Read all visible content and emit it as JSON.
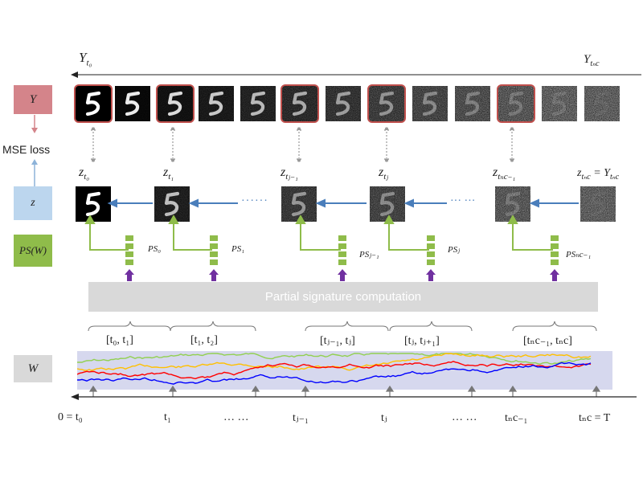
{
  "header": {
    "y_start": "Y",
    "y_start_sub": "t₀",
    "y_end": "Y",
    "y_end_sub": "tₙc"
  },
  "legend": {
    "y": "Y",
    "mse": "MSE loss",
    "z": "z",
    "ps": "PS(W)",
    "w": "W"
  },
  "colors": {
    "y_box": "#d4848a",
    "z_box": "#bcd6ee",
    "ps_box": "#8fbc4a",
    "w_box": "#d9d9d9",
    "frame": "#c0504d",
    "arrow_blue": "#4a7ebb",
    "arrow_green": "#8fbc4a",
    "arrow_purple": "#7030a0",
    "band": "#d6d8ee"
  },
  "latents": {
    "z0": "z",
    "z0_sub": "t₀",
    "z1": "z",
    "z1_sub": "t₁",
    "zj1": "z",
    "zj1_sub": "tⱼ₋₁",
    "zj": "z",
    "zj_sub": "tⱼ",
    "znc1": "z",
    "znc1_sub": "tₙc₋₁",
    "znc": "z",
    "znc_sub": "tₙc",
    "znc_eq": "= Y",
    "znc_eq_sub": "tₙc"
  },
  "dots": {
    "left": "······",
    "right": "··· ···"
  },
  "ps_labels": {
    "ps0": "PS₀",
    "ps1": "PS₁",
    "psj1": "PSⱼ₋₁",
    "psj": "PSⱼ",
    "psnc1": "PSₙc₋₁"
  },
  "partial_box": "Partial signature computation",
  "intervals": {
    "i0": "[t₀, t₁]",
    "i1": "[t₁, t₂]",
    "ij1": "[tⱼ₋₁, tⱼ]",
    "ij": "[tⱼ, tⱼ₊₁]",
    "inc": "[tₙc₋₁, tₙc]"
  },
  "ticks": {
    "t0": "0 = t₀",
    "t1": "t₁",
    "d1": "… …",
    "tj1": "tⱼ₋₁",
    "tj": "tⱼ",
    "d2": "… …",
    "tnc1": "tₙc₋₁",
    "tnc": "tₙc = T"
  }
}
